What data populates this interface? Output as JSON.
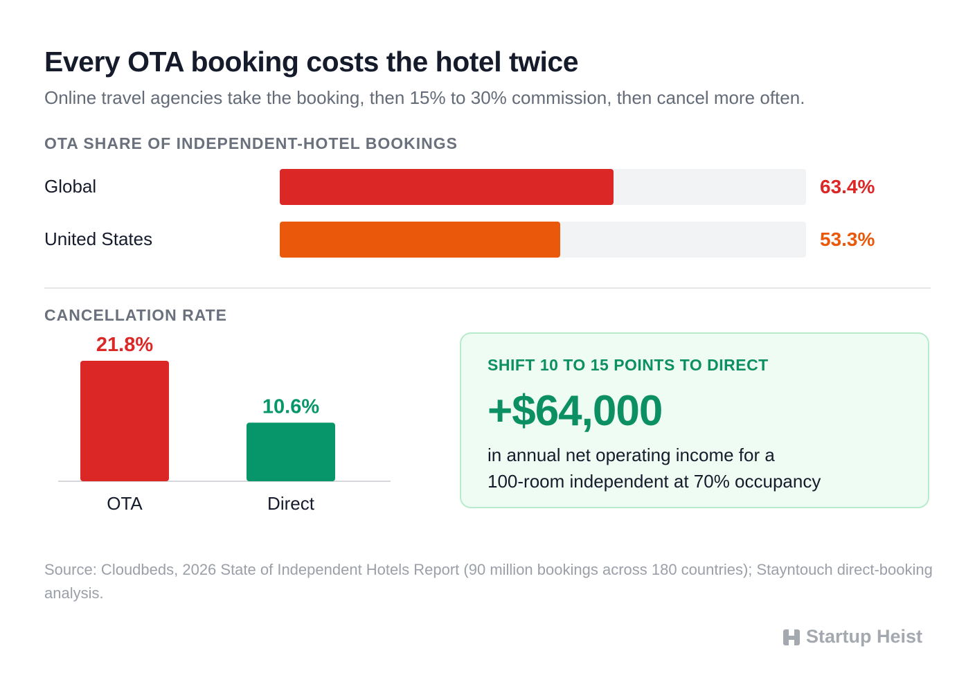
{
  "header": {
    "title": "Every OTA booking costs the hotel twice",
    "subtitle": "Online travel agencies take the booking, then 15% to 30% commission, then cancel more often."
  },
  "share_section": {
    "label": "OTA SHARE OF INDEPENDENT-HOTEL BOOKINGS"
  },
  "cancel_section": {
    "label": "CANCELLATION RATE"
  },
  "chart_data": [
    {
      "type": "bar",
      "orientation": "horizontal",
      "title": "OTA SHARE OF INDEPENDENT-HOTEL BOOKINGS",
      "categories": [
        "Global",
        "United States"
      ],
      "values": [
        63.4,
        53.3
      ],
      "value_labels": [
        "63.4%",
        "53.3%"
      ],
      "colors": [
        "#dc2727",
        "#ea580c"
      ],
      "xlim": [
        0,
        100
      ]
    },
    {
      "type": "bar",
      "orientation": "vertical",
      "title": "CANCELLATION RATE",
      "categories": [
        "OTA",
        "Direct"
      ],
      "values": [
        21.8,
        10.6
      ],
      "value_labels": [
        "21.8%",
        "10.6%"
      ],
      "colors": [
        "#dc2727",
        "#069669"
      ],
      "ylim": [
        0,
        21.8
      ]
    }
  ],
  "callout": {
    "label": "SHIFT 10 TO 15 POINTS TO DIRECT",
    "value": "+$64,000",
    "desc_line1": "in annual net operating income for a",
    "desc_line2": "100-room independent at 70% occupancy"
  },
  "source": {
    "text": "Source: Cloudbeds, 2026 State of Independent Hotels Report (90 million bookings across 180 countries); Stayntouch direct-booking analysis."
  },
  "brand": {
    "name": "Startup Heist",
    "icon": "hotel-building-icon",
    "color": "#a4a8af"
  }
}
